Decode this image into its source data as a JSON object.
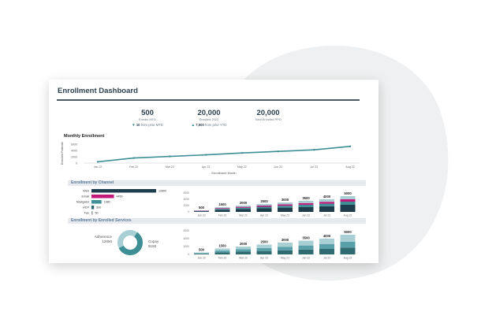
{
  "dashboard": {
    "title": "Enrollment Dashboard",
    "kpis": [
      {
        "value": "500",
        "label": "Enrolls MTD",
        "arrow": "▼",
        "delta": "10",
        "delta_suffix": "from prior MTD"
      },
      {
        "value": "20,000",
        "label": "Enrolled 2022",
        "arrow": "▲",
        "delta": "7,500",
        "delta_suffix": "from prior YTD"
      },
      {
        "value": "20,000",
        "label": "Total Enrolled PPD",
        "arrow": "",
        "delta": "",
        "delta_suffix": ""
      }
    ],
    "monthly": {
      "title": "Monthly Enrollment",
      "ylabel": "Enrolled Patients",
      "xlabel": "Enrollment Month"
    },
    "section_channel": "Enrollment by Channel",
    "section_services": "Enrollment by Enrolled Services",
    "donut": {
      "left_label": "Adherence",
      "left_value": "12850",
      "right_label": "Copay",
      "right_value": "9150"
    }
  },
  "colors": {
    "teal": "#3d8f95",
    "navy": "#1e3d4c",
    "magenta": "#c2187a",
    "light_teal": "#a8cfd4",
    "mid_teal": "#5aa0a8"
  },
  "chart_data": [
    {
      "type": "line",
      "title": "Monthly Enrollment",
      "xlabel": "Enrollment Month",
      "ylabel": "Enrolled Patients",
      "x": [
        "Jan 22",
        "Feb 22",
        "Mar 22",
        "Apr 22",
        "May 22",
        "Jun 22",
        "Jul 22",
        "Aug 22"
      ],
      "y_ticks": [
        "6000",
        "4000",
        "2000",
        "0"
      ],
      "ylim": [
        0,
        6000
      ],
      "values": [
        400,
        1600,
        2100,
        2600,
        3200,
        3700,
        4200,
        5300
      ]
    },
    {
      "type": "bar",
      "title": "Enrollment by Channel",
      "orientation": "horizontal",
      "categories": [
        "Web",
        "Email",
        "Navigator",
        "HCP",
        "Fax"
      ],
      "values": [
        12800,
        4450,
        1980,
        500,
        50
      ],
      "value_labels": [
        "12800",
        "4450",
        "1980",
        "500",
        "50"
      ],
      "colors": [
        "#1e3d4c",
        "#c2187a",
        "#3d8f95",
        "#2f6b70",
        "#999999"
      ]
    },
    {
      "type": "bar",
      "stacked": true,
      "categories": [
        "Jan 22",
        "Feb 22",
        "Mar 22",
        "Apr 22",
        "May 22",
        "Jun 22",
        "Jul 22",
        "Aug 22"
      ],
      "totals": [
        500,
        1500,
        2000,
        2500,
        3000,
        3500,
        4000,
        5000
      ],
      "y_ticks": [
        "6000",
        "4000",
        "2000",
        "0"
      ],
      "ylim": [
        0,
        6000
      ],
      "segment_colors": [
        "#1e3d4c",
        "#3d8f95",
        "#c2187a",
        "#a8cfd4"
      ]
    },
    {
      "type": "pie",
      "donut": true,
      "labels": [
        "Adherence",
        "Copay"
      ],
      "values": [
        12850,
        9150
      ],
      "colors": [
        "#3d8f95",
        "#a8cfd4"
      ]
    },
    {
      "type": "bar",
      "stacked": true,
      "categories": [
        "Jan 22",
        "Feb 22",
        "Mar 22",
        "Apr 22",
        "May 22",
        "Jun 22",
        "Jul 22",
        "Aug 22"
      ],
      "totals": [
        500,
        1500,
        2000,
        2500,
        3000,
        3500,
        4000,
        5000
      ],
      "y_ticks": [
        "6000",
        "4000",
        "2000",
        "0"
      ],
      "ylim": [
        0,
        6000
      ],
      "segment_colors": [
        "#2f6b70",
        "#5aa0a8",
        "#a8cfd4"
      ]
    }
  ]
}
